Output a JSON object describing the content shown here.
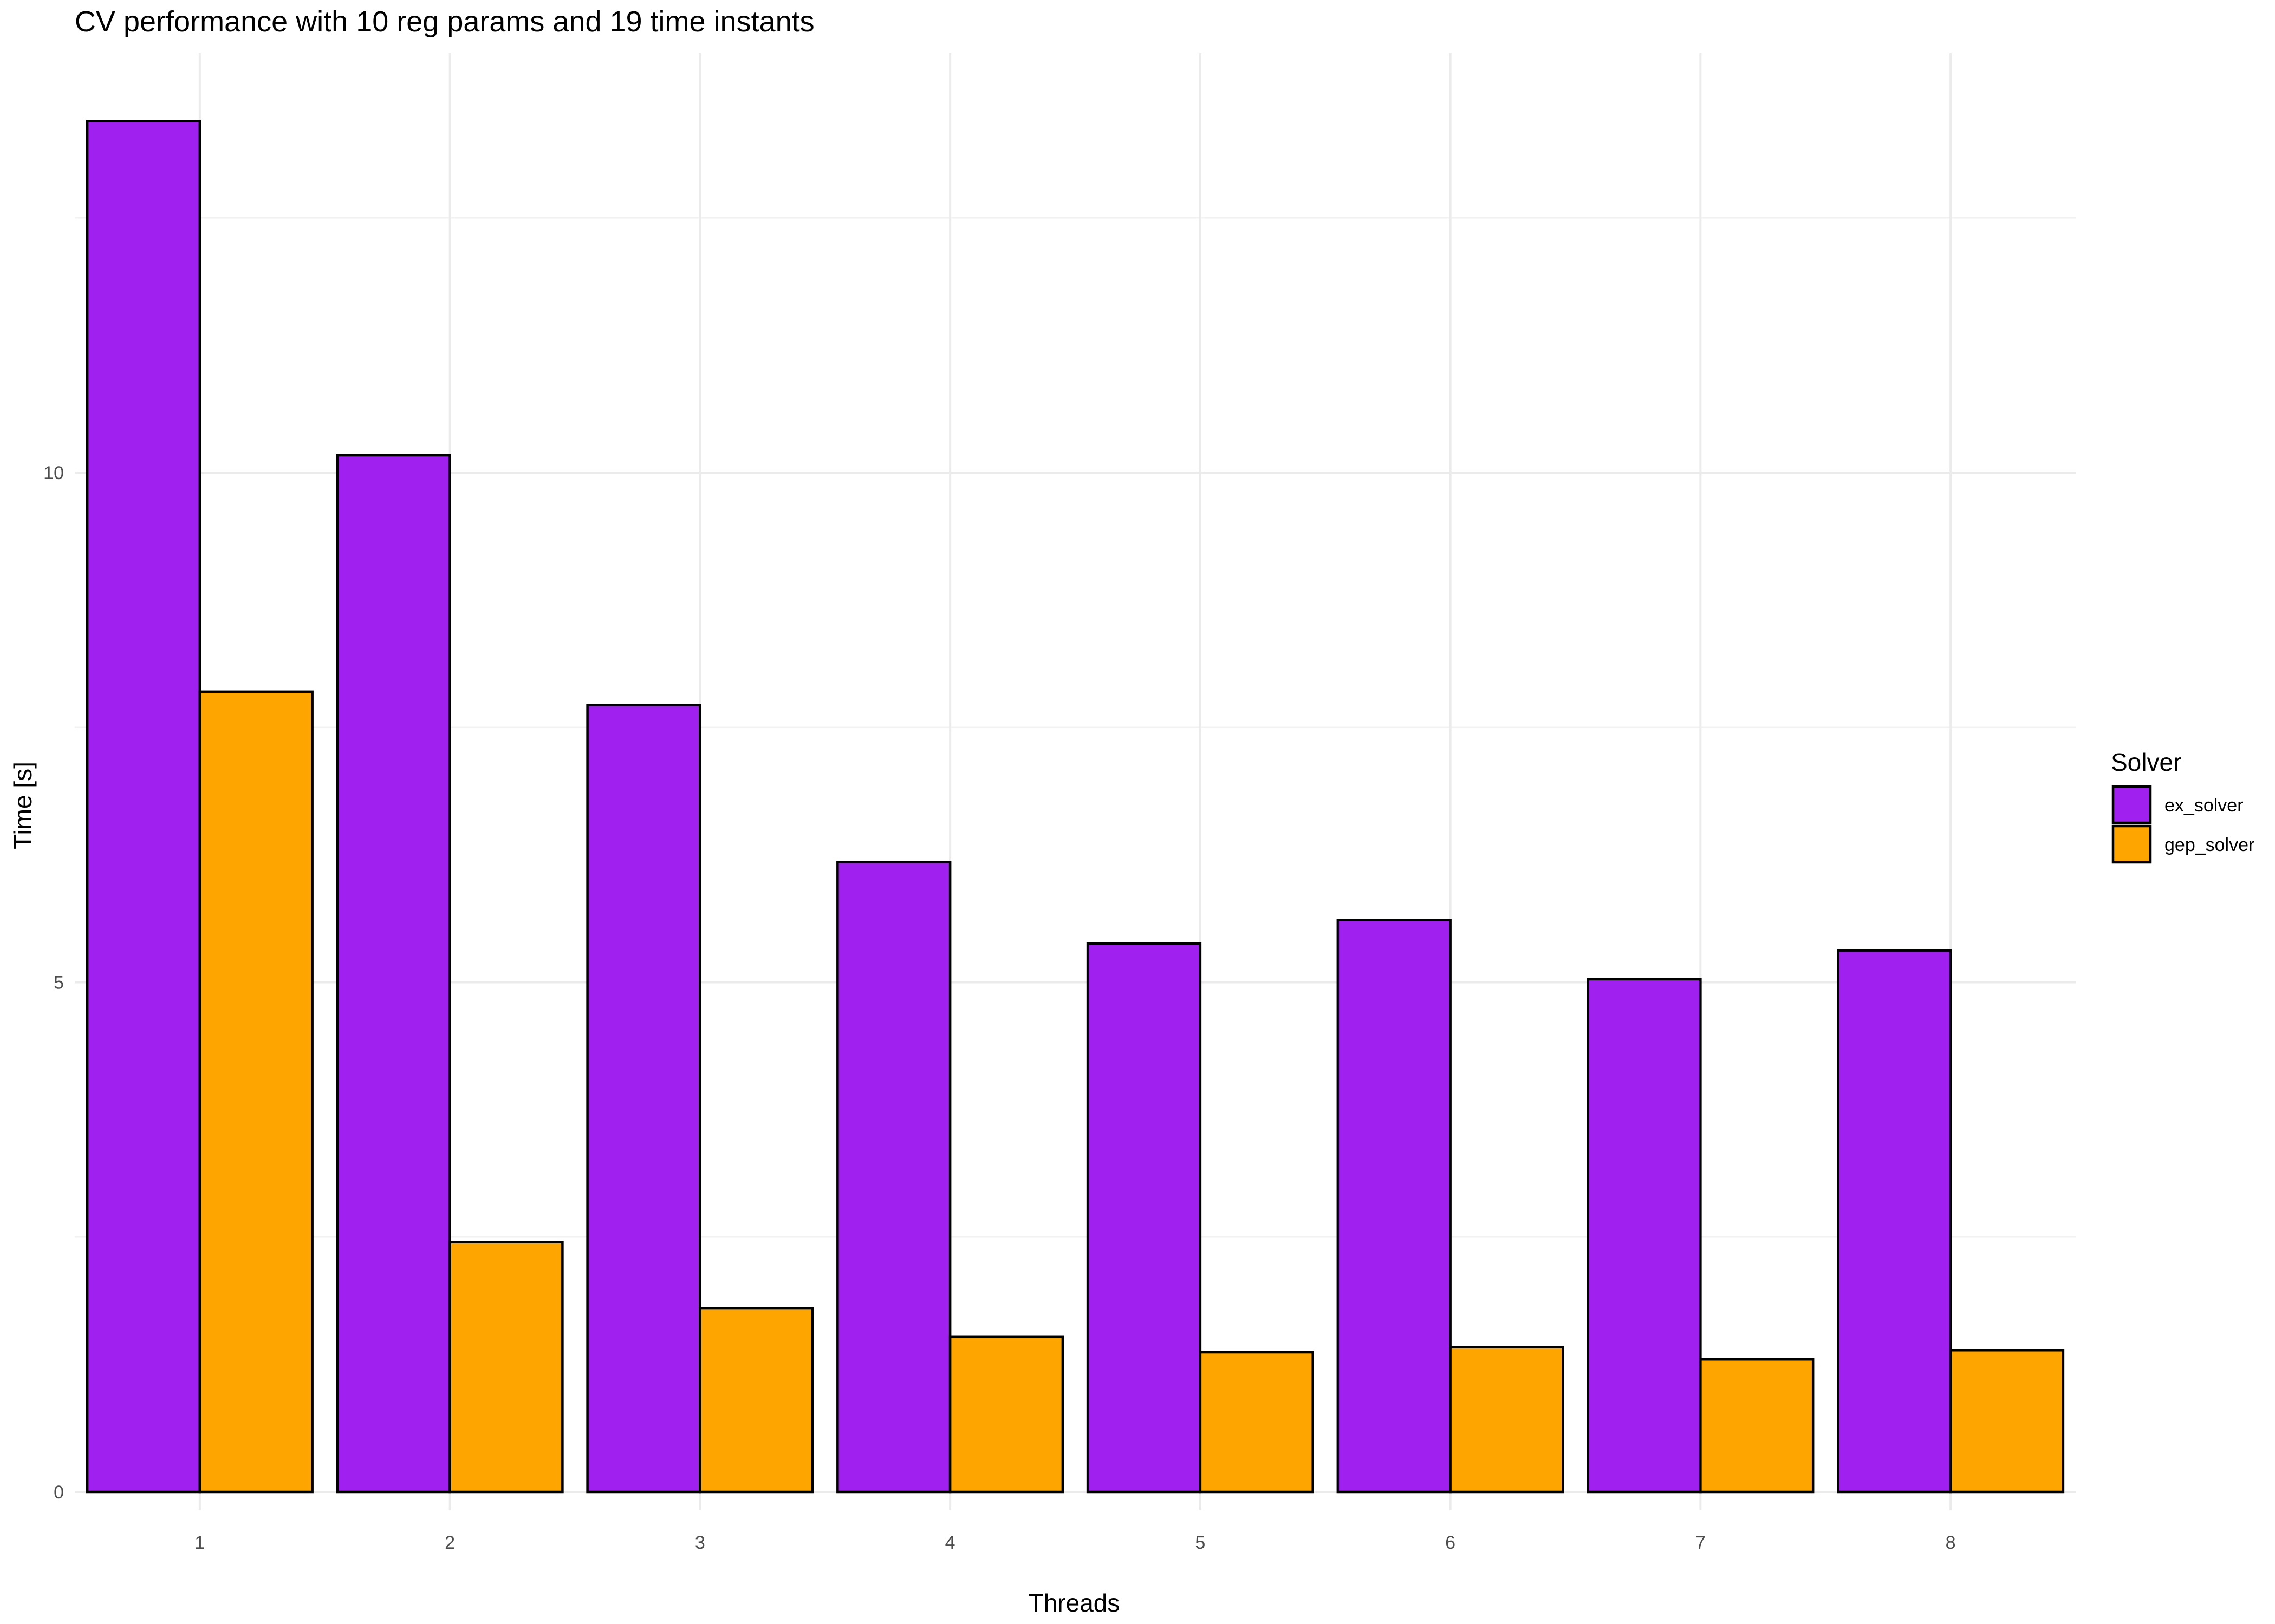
{
  "chart_data": {
    "type": "bar",
    "title": "CV performance with 10 reg params and 19 time instants",
    "xlabel": "Threads",
    "ylabel": "Time [s]",
    "categories": [
      "1",
      "2",
      "3",
      "4",
      "5",
      "6",
      "7",
      "8"
    ],
    "y_ticks": [
      "0",
      "5",
      "10"
    ],
    "ylim": [
      0,
      13.8
    ],
    "grid": true,
    "legend": {
      "title": "Solver",
      "position": "right"
    },
    "series": [
      {
        "name": "ex_solver",
        "color": "#a020f0",
        "values": [
          13.45,
          10.17,
          7.72,
          6.18,
          5.38,
          5.61,
          5.03,
          5.31
        ]
      },
      {
        "name": "gep_solver",
        "color": "#ffa500",
        "values": [
          7.85,
          2.45,
          1.8,
          1.52,
          1.37,
          1.42,
          1.3,
          1.39
        ]
      }
    ]
  }
}
